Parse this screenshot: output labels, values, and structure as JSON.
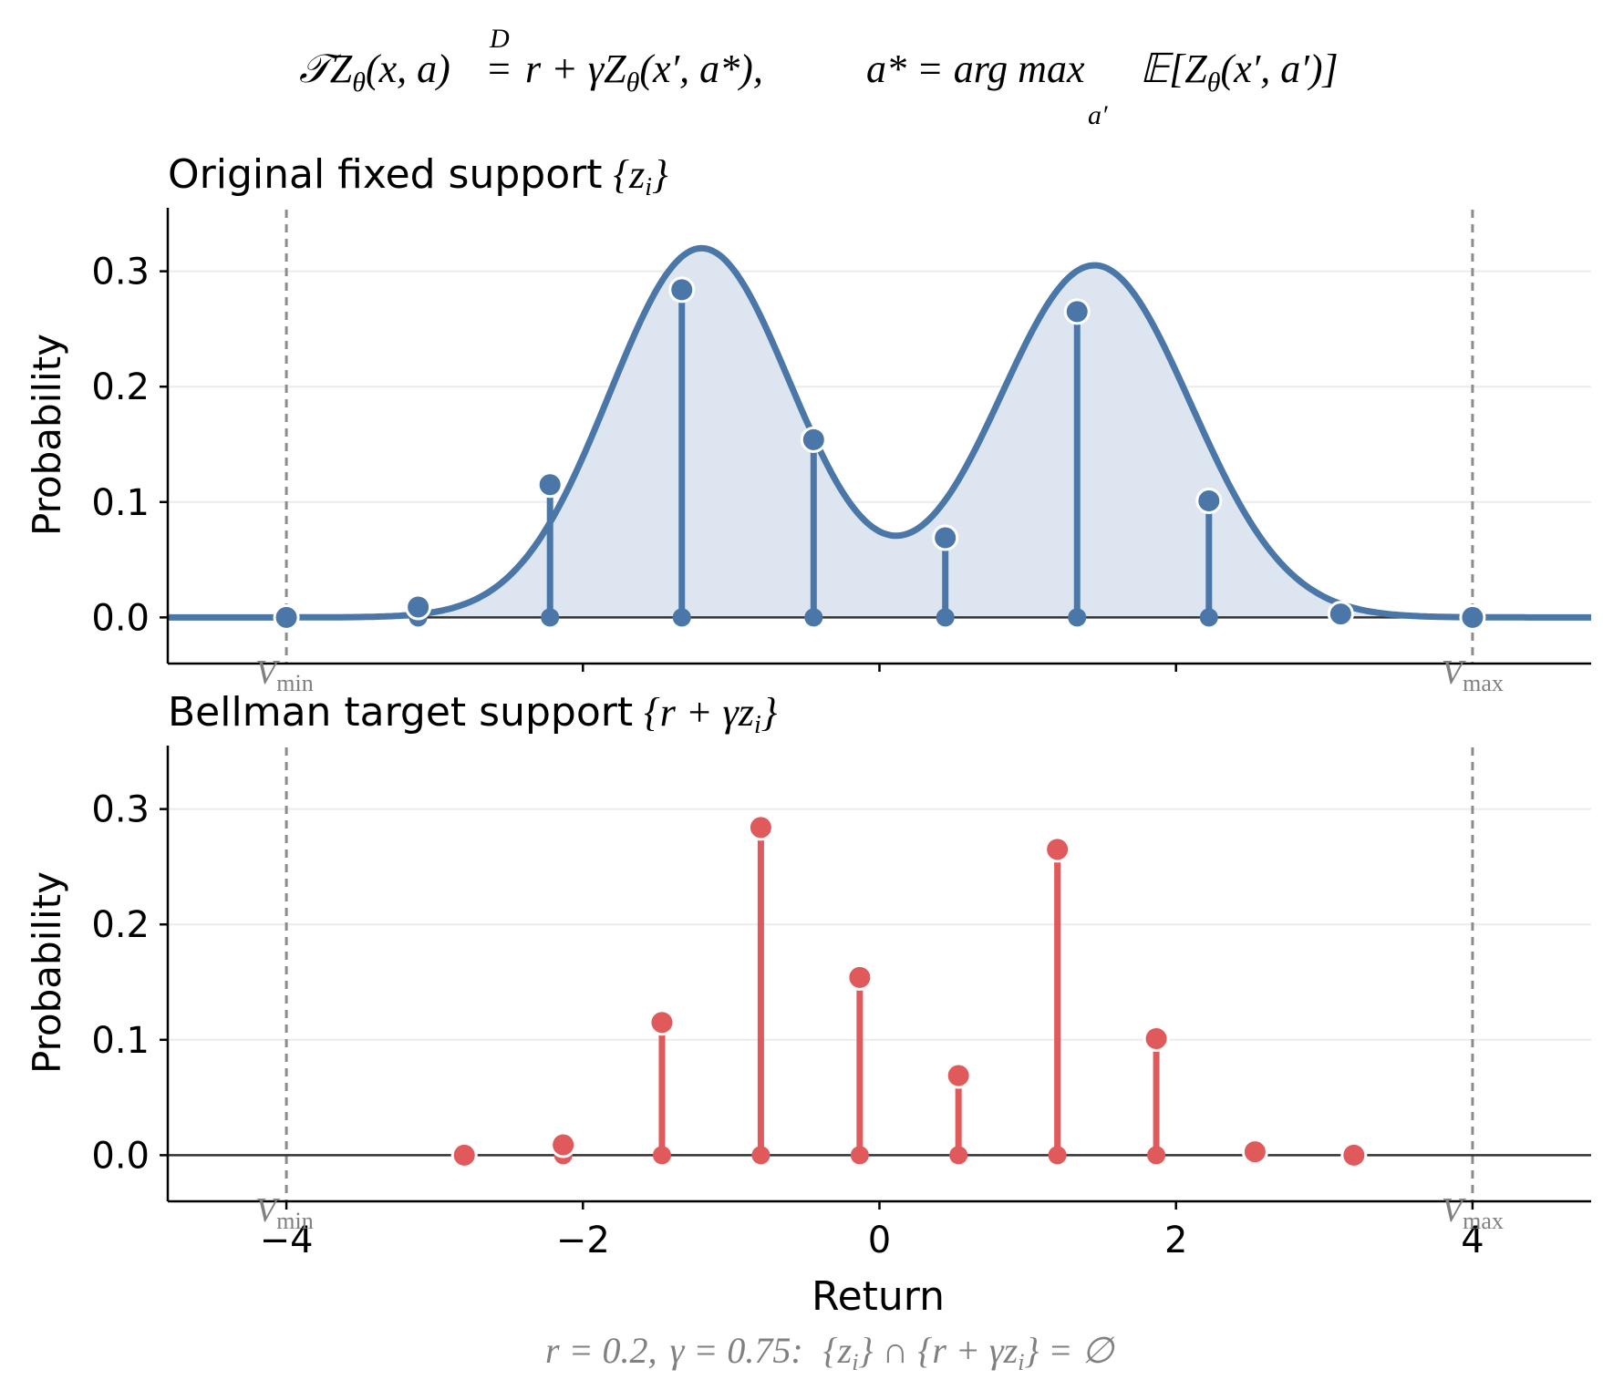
{
  "formula": {
    "lhs": "𝒯Z",
    "lhs_sub": "θ",
    "lhs_args": "(x, a)",
    "eq_over": "D",
    "eq": "=",
    "rhs": "r + γZ",
    "rhs_sub": "θ",
    "rhs_args": "(x′, a*),",
    "astar": "a* = arg max",
    "argmax_sub": "a′",
    "expect": "𝔼[Z",
    "expect_sub": "θ",
    "expect_args": "(x′, a′)]"
  },
  "footer": {
    "r_text": "r = 0.2,",
    "gamma_text": "γ = 0.75:",
    "set_text": "{z",
    "set_sub": "i",
    "set_mid": "} ∩ {r + γz",
    "set_sub2": "i",
    "set_end": "} = ∅"
  },
  "colors": {
    "blue": "#4a76a8",
    "blue_fill": "#dde6f0",
    "red": "#e05a5c",
    "vline": "#8c8c8c",
    "baseline": "#333333",
    "grid": "#ebebeb"
  },
  "chart_data": [
    {
      "type": "line",
      "title": "Original fixed support",
      "title_math": "{z",
      "title_math_sub": "i",
      "title_math_end": "}",
      "xlabel": "",
      "ylabel": "Probability",
      "xlim": [
        -4.8,
        4.8
      ],
      "ylim": [
        -0.04,
        0.355
      ],
      "yticks": [
        0.0,
        0.1,
        0.2,
        0.3
      ],
      "ytick_labels": [
        "0.0",
        "0.1",
        "0.2",
        "0.3"
      ],
      "xticks": [
        -2,
        0,
        2
      ],
      "vmin": -4,
      "vmax": 4,
      "vmin_label": "V",
      "vmin_sub": "min",
      "vmax_label": "V",
      "vmax_sub": "max",
      "grid": true,
      "density_curve": {
        "components": [
          {
            "weight": 0.5,
            "mean": -1.2,
            "sd": 0.62
          },
          {
            "weight": 0.5,
            "mean": 1.45,
            "sd": 0.65
          }
        ],
        "scale": 1.0
      },
      "atoms": {
        "x": [
          -4.0,
          -3.111,
          -2.222,
          -1.333,
          -0.444,
          0.444,
          1.333,
          2.222,
          3.111,
          4.0
        ],
        "p": [
          0.0,
          0.009,
          0.115,
          0.284,
          0.154,
          0.069,
          0.265,
          0.101,
          0.003,
          0.0
        ]
      }
    },
    {
      "type": "bar",
      "title": "Bellman target support",
      "title_math": "{r + γz",
      "title_math_sub": "i",
      "title_math_end": "}",
      "xlabel": "Return",
      "ylabel": "Probability",
      "xlim": [
        -4.8,
        4.8
      ],
      "ylim": [
        -0.04,
        0.355
      ],
      "yticks": [
        0.0,
        0.1,
        0.2,
        0.3
      ],
      "ytick_labels": [
        "0.0",
        "0.1",
        "0.2",
        "0.3"
      ],
      "xticks": [
        -4,
        -2,
        0,
        2,
        4
      ],
      "xtick_labels": [
        "−4",
        "−2",
        "0",
        "2",
        "4"
      ],
      "vmin": -4,
      "vmax": 4,
      "vmin_label": "V",
      "vmin_sub": "min",
      "vmax_label": "V",
      "vmax_sub": "max",
      "grid": true,
      "atoms": {
        "x": [
          -2.8,
          -2.133,
          -1.467,
          -0.8,
          -0.133,
          0.533,
          1.2,
          1.867,
          2.533,
          3.2
        ],
        "p": [
          0.0,
          0.009,
          0.115,
          0.284,
          0.154,
          0.069,
          0.265,
          0.101,
          0.003,
          0.0
        ]
      }
    }
  ]
}
